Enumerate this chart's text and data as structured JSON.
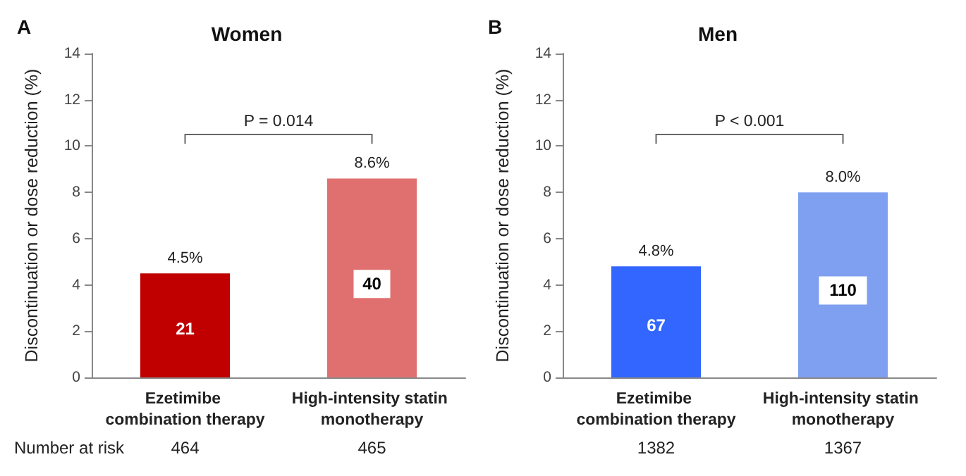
{
  "chart_data": [
    {
      "type": "bar",
      "title": "Women",
      "ylabel": "Discontinuation or dose reduction (%)",
      "categories": [
        "Ezetimibe combination therapy",
        "High-intensity statin monotherapy"
      ],
      "values": [
        4.5,
        8.6
      ],
      "colors": [
        "#c00000",
        "#e07070"
      ],
      "value_labels": [
        "4.5%",
        "8.6%"
      ],
      "ylim": [
        0,
        14
      ],
      "yticks": [
        0,
        2,
        4,
        6,
        8,
        10,
        12,
        14
      ],
      "grid": false,
      "annotations": [
        "A",
        "P = 0.014",
        "Number at risk",
        "21",
        "40",
        "464",
        "465"
      ]
    },
    {
      "type": "bar",
      "title": "Men",
      "ylabel": "Discontinuation or dose reduction (%)",
      "categories": [
        "Ezetimibe combination therapy",
        "High-intensity statin monotherapy"
      ],
      "values": [
        4.8,
        8.0
      ],
      "colors": [
        "#3366ff",
        "#7fa0f0"
      ],
      "value_labels": [
        "4.8%",
        "8.0%"
      ],
      "ylim": [
        0,
        14
      ],
      "yticks": [
        0,
        2,
        4,
        6,
        8,
        10,
        12,
        14
      ],
      "grid": false,
      "annotations": [
        "B",
        "P < 0.001",
        "67",
        "110",
        "1382",
        "1367"
      ]
    }
  ]
}
